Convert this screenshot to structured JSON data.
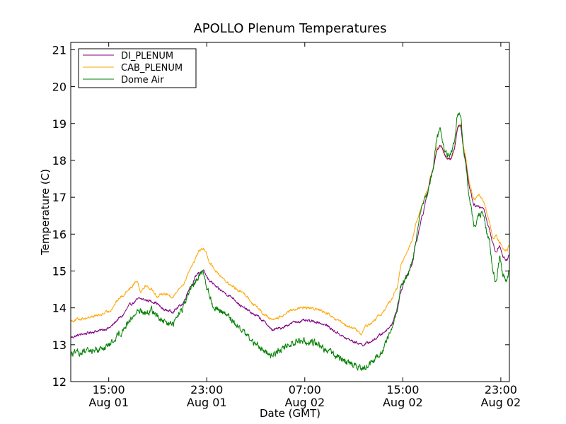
{
  "chart_data": {
    "type": "line",
    "title": "APOLLO Plenum Temperatures",
    "xlabel": "Date (GMT)",
    "ylabel": "Temperature (C)",
    "ylim": [
      12,
      21.2
    ],
    "xlim_hours_from_aug01_0000": [
      11.9,
      47.7
    ],
    "grid": false,
    "legend_position": "top-left",
    "y_ticks": [
      12,
      13,
      14,
      15,
      16,
      17,
      18,
      19,
      20,
      21
    ],
    "x_ticks": [
      {
        "hours": 15,
        "line1": "15:00",
        "line2": "Aug 01"
      },
      {
        "hours": 23,
        "line1": "23:00",
        "line2": "Aug 01"
      },
      {
        "hours": 31,
        "line1": "07:00",
        "line2": "Aug 02"
      },
      {
        "hours": 39,
        "line1": "15:00",
        "line2": "Aug 02"
      },
      {
        "hours": 47,
        "line1": "23:00",
        "line2": "Aug 02"
      }
    ],
    "x_unit": "hours since Aug 01 00:00 GMT",
    "series": [
      {
        "name": "DI_PLENUM",
        "color": "#800080",
        "noise": 0.03,
        "points": [
          [
            11.9,
            13.2
          ],
          [
            13.0,
            13.3
          ],
          [
            14.2,
            13.38
          ],
          [
            15.0,
            13.45
          ],
          [
            16.0,
            13.75
          ],
          [
            16.8,
            14.1
          ],
          [
            17.5,
            14.25
          ],
          [
            18.2,
            14.2
          ],
          [
            18.8,
            14.15
          ],
          [
            19.5,
            13.95
          ],
          [
            20.2,
            13.9
          ],
          [
            21.0,
            14.1
          ],
          [
            21.7,
            14.6
          ],
          [
            22.3,
            14.95
          ],
          [
            22.7,
            15.0
          ],
          [
            23.2,
            14.75
          ],
          [
            24.0,
            14.5
          ],
          [
            25.0,
            14.3
          ],
          [
            26.0,
            14.0
          ],
          [
            27.0,
            13.8
          ],
          [
            27.8,
            13.6
          ],
          [
            28.3,
            13.4
          ],
          [
            29.0,
            13.45
          ],
          [
            29.7,
            13.55
          ],
          [
            30.2,
            13.62
          ],
          [
            31.0,
            13.65
          ],
          [
            32.0,
            13.62
          ],
          [
            32.8,
            13.52
          ],
          [
            33.5,
            13.35
          ],
          [
            34.5,
            13.15
          ],
          [
            35.3,
            13.05
          ],
          [
            35.8,
            13.0
          ],
          [
            36.5,
            13.1
          ],
          [
            37.3,
            13.3
          ],
          [
            38.0,
            13.5
          ],
          [
            38.5,
            13.9
          ],
          [
            38.9,
            14.5
          ],
          [
            39.3,
            14.9
          ],
          [
            39.7,
            15.1
          ],
          [
            40.1,
            15.8
          ],
          [
            40.6,
            16.5
          ],
          [
            41.0,
            17.1
          ],
          [
            41.4,
            17.7
          ],
          [
            41.8,
            18.3
          ],
          [
            42.1,
            18.4
          ],
          [
            42.5,
            18.1
          ],
          [
            42.9,
            18.05
          ],
          [
            43.2,
            18.3
          ],
          [
            43.5,
            18.95
          ],
          [
            43.7,
            18.95
          ],
          [
            44.0,
            18.2
          ],
          [
            44.5,
            17.2
          ],
          [
            44.8,
            16.8
          ],
          [
            45.2,
            16.75
          ],
          [
            45.6,
            16.7
          ],
          [
            46.0,
            16.2
          ],
          [
            46.4,
            15.7
          ],
          [
            46.6,
            15.5
          ],
          [
            46.9,
            15.7
          ],
          [
            47.2,
            15.35
          ],
          [
            47.5,
            15.3
          ],
          [
            47.7,
            15.45
          ]
        ]
      },
      {
        "name": "CAB_PLENUM",
        "color": "#ffa500",
        "noise": 0.03,
        "points": [
          [
            11.9,
            13.65
          ],
          [
            13.0,
            13.72
          ],
          [
            14.2,
            13.8
          ],
          [
            15.0,
            13.9
          ],
          [
            16.0,
            14.3
          ],
          [
            16.8,
            14.55
          ],
          [
            17.3,
            14.75
          ],
          [
            17.6,
            14.45
          ],
          [
            18.0,
            14.6
          ],
          [
            18.5,
            14.5
          ],
          [
            19.0,
            14.3
          ],
          [
            19.5,
            14.4
          ],
          [
            20.2,
            14.3
          ],
          [
            21.0,
            14.6
          ],
          [
            21.8,
            15.15
          ],
          [
            22.4,
            15.55
          ],
          [
            22.8,
            15.6
          ],
          [
            23.3,
            15.2
          ],
          [
            24.0,
            14.9
          ],
          [
            25.0,
            14.6
          ],
          [
            26.0,
            14.4
          ],
          [
            27.0,
            14.05
          ],
          [
            27.8,
            13.8
          ],
          [
            28.3,
            13.68
          ],
          [
            29.0,
            13.75
          ],
          [
            29.7,
            13.9
          ],
          [
            30.2,
            13.97
          ],
          [
            31.0,
            14.0
          ],
          [
            32.0,
            13.97
          ],
          [
            32.8,
            13.85
          ],
          [
            33.5,
            13.68
          ],
          [
            34.5,
            13.5
          ],
          [
            35.3,
            13.4
          ],
          [
            35.6,
            13.25
          ],
          [
            35.9,
            13.5
          ],
          [
            36.5,
            13.6
          ],
          [
            37.3,
            13.85
          ],
          [
            38.0,
            14.2
          ],
          [
            38.5,
            14.5
          ],
          [
            38.9,
            15.2
          ],
          [
            39.3,
            15.5
          ],
          [
            39.7,
            15.75
          ],
          [
            40.1,
            16.3
          ],
          [
            40.6,
            16.8
          ],
          [
            41.0,
            17.2
          ],
          [
            41.4,
            17.7
          ],
          [
            41.8,
            18.3
          ],
          [
            42.1,
            18.4
          ],
          [
            42.5,
            18.1
          ],
          [
            42.9,
            18.0
          ],
          [
            43.2,
            18.3
          ],
          [
            43.5,
            18.9
          ],
          [
            43.7,
            19.0
          ],
          [
            44.0,
            18.3
          ],
          [
            44.5,
            17.3
          ],
          [
            44.8,
            16.95
          ],
          [
            45.2,
            17.05
          ],
          [
            45.6,
            16.9
          ],
          [
            46.0,
            16.4
          ],
          [
            46.4,
            15.85
          ],
          [
            46.6,
            15.95
          ],
          [
            46.9,
            15.8
          ],
          [
            47.2,
            15.6
          ],
          [
            47.5,
            15.55
          ],
          [
            47.7,
            15.7
          ]
        ]
      },
      {
        "name": "Dome Air",
        "color": "#008000",
        "noise": 0.07,
        "points": [
          [
            11.9,
            12.75
          ],
          [
            13.0,
            12.8
          ],
          [
            14.2,
            12.88
          ],
          [
            15.0,
            12.98
          ],
          [
            16.0,
            13.35
          ],
          [
            16.8,
            13.7
          ],
          [
            17.5,
            13.95
          ],
          [
            18.0,
            13.85
          ],
          [
            18.5,
            13.95
          ],
          [
            19.0,
            13.75
          ],
          [
            19.5,
            13.6
          ],
          [
            20.2,
            13.55
          ],
          [
            21.0,
            13.95
          ],
          [
            21.7,
            14.5
          ],
          [
            22.3,
            14.85
          ],
          [
            22.7,
            15.0
          ],
          [
            23.0,
            14.6
          ],
          [
            23.5,
            14.05
          ],
          [
            24.0,
            13.95
          ],
          [
            25.0,
            13.7
          ],
          [
            26.0,
            13.35
          ],
          [
            27.0,
            13.0
          ],
          [
            27.8,
            12.8
          ],
          [
            28.3,
            12.72
          ],
          [
            29.0,
            12.85
          ],
          [
            29.7,
            13.0
          ],
          [
            30.2,
            13.08
          ],
          [
            31.0,
            13.1
          ],
          [
            32.0,
            13.05
          ],
          [
            32.8,
            12.85
          ],
          [
            33.5,
            12.7
          ],
          [
            34.5,
            12.5
          ],
          [
            35.3,
            12.42
          ],
          [
            35.8,
            12.35
          ],
          [
            36.5,
            12.5
          ],
          [
            37.3,
            12.85
          ],
          [
            38.0,
            13.3
          ],
          [
            38.5,
            13.9
          ],
          [
            38.9,
            14.6
          ],
          [
            39.3,
            14.8
          ],
          [
            39.7,
            15.1
          ],
          [
            40.1,
            15.9
          ],
          [
            40.5,
            16.7
          ],
          [
            41.0,
            17.1
          ],
          [
            41.4,
            17.7
          ],
          [
            41.8,
            18.6
          ],
          [
            42.1,
            18.8
          ],
          [
            42.5,
            18.2
          ],
          [
            42.9,
            18.15
          ],
          [
            43.2,
            18.5
          ],
          [
            43.5,
            19.3
          ],
          [
            43.7,
            19.2
          ],
          [
            44.0,
            18.2
          ],
          [
            44.5,
            16.8
          ],
          [
            44.8,
            16.2
          ],
          [
            45.2,
            16.5
          ],
          [
            45.5,
            16.6
          ],
          [
            46.0,
            15.9
          ],
          [
            46.4,
            15.0
          ],
          [
            46.6,
            14.7
          ],
          [
            46.9,
            15.35
          ],
          [
            47.2,
            14.85
          ],
          [
            47.5,
            14.75
          ],
          [
            47.7,
            15.0
          ]
        ]
      }
    ]
  }
}
